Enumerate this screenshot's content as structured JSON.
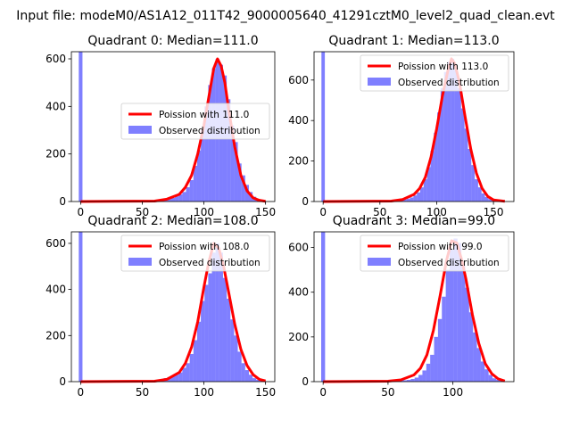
{
  "figure_title": "Input file: modeM0/AS1A12_011T42_9000005640_41291cztM0_level2_quad_clean.evt",
  "colors": {
    "observed": "#0000ff",
    "poisson": "#ff0000"
  },
  "chart_data": [
    {
      "type": "bar",
      "title": "Quadrant 0: Median=111.0",
      "xlim": [
        -7.5,
        157.5
      ],
      "ylim": [
        0,
        630
      ],
      "xticks": [
        0,
        50,
        100,
        150
      ],
      "yticks": [
        0,
        200,
        400,
        600
      ],
      "legend": [
        "Poission with 111.0",
        "Observed distribution"
      ],
      "legend_position": "center-right",
      "median": 111,
      "bin_width": 3,
      "bins": [
        [
          0,
          630
        ],
        [
          51,
          3
        ],
        [
          54,
          4
        ],
        [
          57,
          5
        ],
        [
          60,
          4
        ],
        [
          63,
          6
        ],
        [
          66,
          8
        ],
        [
          69,
          9
        ],
        [
          72,
          12
        ],
        [
          75,
          15
        ],
        [
          78,
          22
        ],
        [
          81,
          30
        ],
        [
          84,
          40
        ],
        [
          87,
          60
        ],
        [
          90,
          90
        ],
        [
          93,
          150
        ],
        [
          96,
          215
        ],
        [
          99,
          300
        ],
        [
          102,
          400
        ],
        [
          105,
          490
        ],
        [
          108,
          560
        ],
        [
          111,
          600
        ],
        [
          114,
          575
        ],
        [
          117,
          530
        ],
        [
          120,
          430
        ],
        [
          123,
          320
        ],
        [
          126,
          250
        ],
        [
          129,
          160
        ],
        [
          132,
          110
        ],
        [
          135,
          70
        ],
        [
          138,
          40
        ],
        [
          141,
          20
        ],
        [
          144,
          10
        ],
        [
          147,
          5
        ]
      ],
      "poisson_line": {
        "x": [
          0,
          60,
          70,
          80,
          85,
          90,
          95,
          100,
          105,
          108,
          111,
          114,
          117,
          120,
          125,
          130,
          135,
          140,
          145,
          150
        ],
        "y": [
          0,
          2,
          10,
          30,
          60,
          110,
          200,
          320,
          470,
          560,
          600,
          570,
          500,
          390,
          230,
          110,
          45,
          15,
          5,
          1
        ]
      }
    },
    {
      "type": "bar",
      "title": "Quadrant 1: Median=113.0",
      "xlim": [
        -8,
        168
      ],
      "ylim": [
        0,
        740
      ],
      "xticks": [
        0,
        50,
        100,
        150
      ],
      "yticks": [
        0,
        200,
        400,
        600
      ],
      "legend": [
        "Poission with 113.0",
        "Observed distribution"
      ],
      "legend_position": "upper-right",
      "median": 113,
      "bin_width": 3,
      "bins": [
        [
          0,
          740
        ],
        [
          60,
          4
        ],
        [
          63,
          5
        ],
        [
          66,
          6
        ],
        [
          69,
          8
        ],
        [
          72,
          10
        ],
        [
          75,
          14
        ],
        [
          78,
          20
        ],
        [
          81,
          30
        ],
        [
          84,
          45
        ],
        [
          87,
          70
        ],
        [
          90,
          110
        ],
        [
          93,
          170
        ],
        [
          96,
          250
        ],
        [
          99,
          340
        ],
        [
          102,
          440
        ],
        [
          105,
          560
        ],
        [
          108,
          640
        ],
        [
          111,
          690
        ],
        [
          114,
          705
        ],
        [
          117,
          650
        ],
        [
          120,
          560
        ],
        [
          123,
          460
        ],
        [
          126,
          360
        ],
        [
          129,
          260
        ],
        [
          132,
          180
        ],
        [
          135,
          110
        ],
        [
          138,
          70
        ],
        [
          141,
          40
        ],
        [
          144,
          22
        ],
        [
          147,
          12
        ],
        [
          150,
          6
        ],
        [
          153,
          3
        ]
      ],
      "poisson_line": {
        "x": [
          0,
          60,
          70,
          80,
          85,
          90,
          95,
          100,
          105,
          110,
          113,
          116,
          120,
          125,
          130,
          135,
          140,
          145,
          150,
          160
        ],
        "y": [
          0,
          2,
          10,
          35,
          65,
          120,
          220,
          360,
          520,
          650,
          705,
          680,
          590,
          420,
          260,
          140,
          65,
          25,
          8,
          1
        ]
      }
    },
    {
      "type": "bar",
      "title": "Quadrant 2: Median=108.0",
      "xlim": [
        -7.5,
        157.5
      ],
      "ylim": [
        0,
        650
      ],
      "xticks": [
        0,
        50,
        100,
        150
      ],
      "yticks": [
        0,
        200,
        400,
        600
      ],
      "legend": [
        "Poission with 108.0",
        "Observed distribution"
      ],
      "legend_position": "upper-right",
      "median": 108,
      "bin_width": 3,
      "bins": [
        [
          0,
          650
        ],
        [
          60,
          4
        ],
        [
          63,
          6
        ],
        [
          66,
          10
        ],
        [
          69,
          15
        ],
        [
          72,
          20
        ],
        [
          75,
          25
        ],
        [
          78,
          30
        ],
        [
          81,
          40
        ],
        [
          84,
          60
        ],
        [
          87,
          80
        ],
        [
          90,
          120
        ],
        [
          93,
          180
        ],
        [
          96,
          260
        ],
        [
          99,
          350
        ],
        [
          102,
          420
        ],
        [
          105,
          470
        ],
        [
          108,
          560
        ],
        [
          111,
          600
        ],
        [
          114,
          560
        ],
        [
          117,
          450
        ],
        [
          120,
          360
        ],
        [
          123,
          270
        ],
        [
          126,
          200
        ],
        [
          129,
          130
        ],
        [
          132,
          80
        ],
        [
          135,
          50
        ],
        [
          138,
          30
        ],
        [
          141,
          15
        ],
        [
          144,
          8
        ],
        [
          147,
          4
        ]
      ],
      "poisson_line": {
        "x": [
          0,
          60,
          70,
          80,
          85,
          90,
          95,
          100,
          104,
          108,
          112,
          116,
          120,
          125,
          130,
          135,
          140,
          145,
          150
        ],
        "y": [
          0,
          2,
          10,
          40,
          80,
          150,
          260,
          410,
          520,
          600,
          580,
          500,
          390,
          250,
          140,
          70,
          30,
          10,
          3
        ]
      }
    },
    {
      "type": "bar",
      "title": "Quadrant 3: Median=99.0",
      "xlim": [
        -7,
        147
      ],
      "ylim": [
        0,
        670
      ],
      "xticks": [
        0,
        50,
        100
      ],
      "yticks": [
        0,
        200,
        400,
        600
      ],
      "legend": [
        "Poission with 99.0",
        "Observed distribution"
      ],
      "legend_position": "upper-right",
      "median": 99,
      "bin_width": 3,
      "bins": [
        [
          0,
          670
        ],
        [
          54,
          3
        ],
        [
          57,
          4
        ],
        [
          60,
          5
        ],
        [
          63,
          6
        ],
        [
          66,
          8
        ],
        [
          69,
          12
        ],
        [
          72,
          18
        ],
        [
          75,
          30
        ],
        [
          78,
          50
        ],
        [
          81,
          80
        ],
        [
          84,
          120
        ],
        [
          87,
          200
        ],
        [
          90,
          280
        ],
        [
          93,
          380
        ],
        [
          96,
          500
        ],
        [
          99,
          590
        ],
        [
          102,
          640
        ],
        [
          105,
          620
        ],
        [
          108,
          520
        ],
        [
          111,
          420
        ],
        [
          114,
          310
        ],
        [
          117,
          220
        ],
        [
          120,
          150
        ],
        [
          123,
          90
        ],
        [
          126,
          55
        ],
        [
          129,
          30
        ],
        [
          132,
          15
        ],
        [
          135,
          8
        ],
        [
          138,
          4
        ]
      ],
      "poisson_line": {
        "x": [
          0,
          50,
          60,
          70,
          75,
          80,
          85,
          90,
          95,
          99,
          103,
          107,
          110,
          115,
          120,
          125,
          130,
          135,
          140
        ],
        "y": [
          0,
          2,
          8,
          30,
          60,
          120,
          230,
          380,
          540,
          630,
          620,
          540,
          460,
          300,
          170,
          80,
          35,
          12,
          3
        ]
      }
    }
  ]
}
